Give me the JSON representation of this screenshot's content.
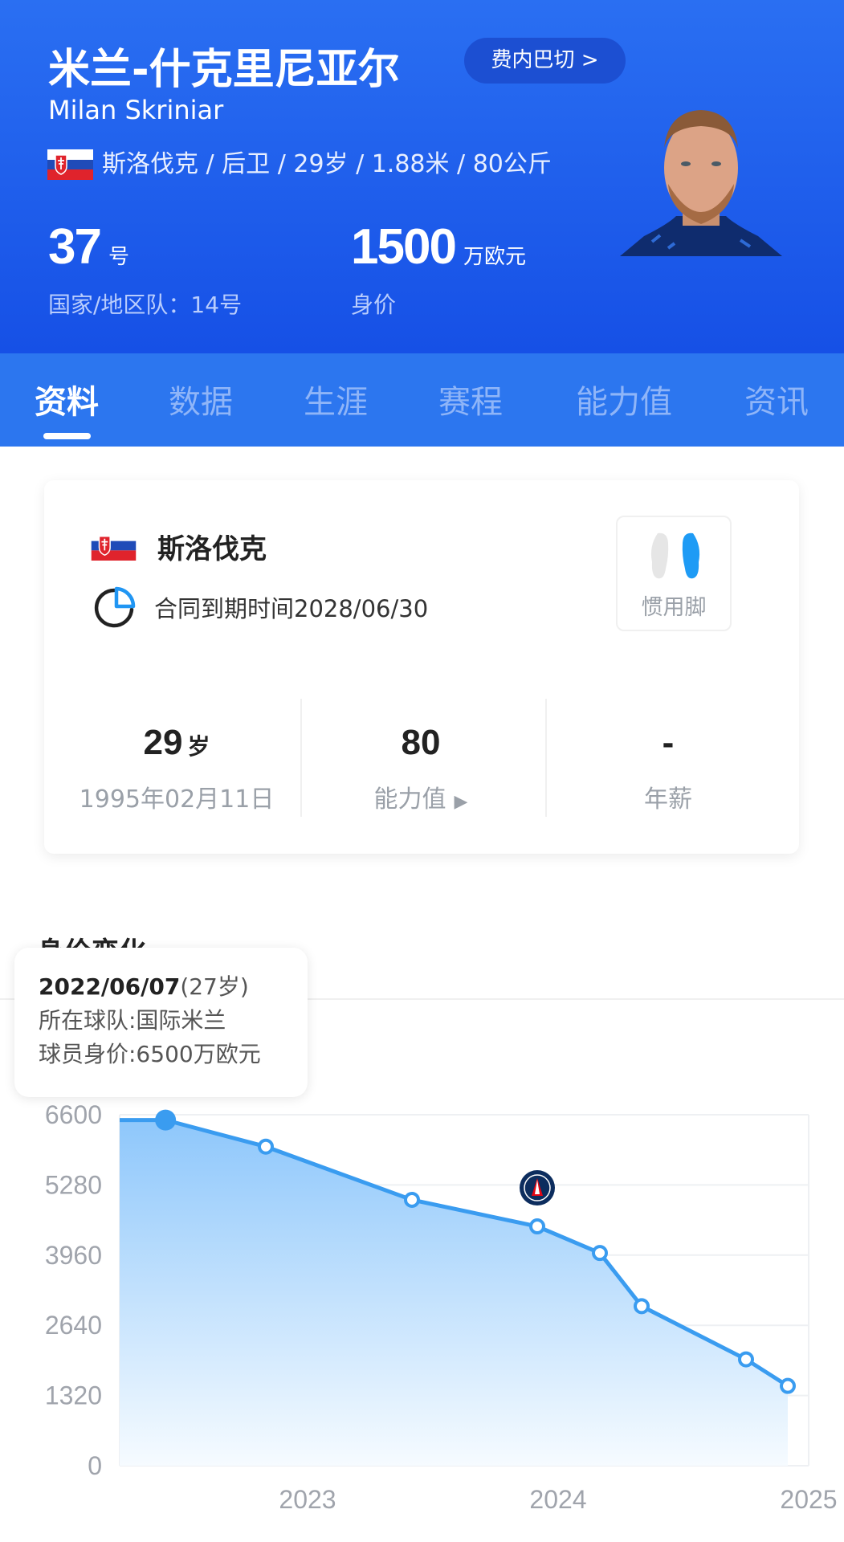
{
  "header": {
    "name_cn": "米兰-什克里尼亚尔",
    "team_badge": "费内巴切 >",
    "name_en": "Milan Skriniar",
    "info_line": "斯洛伐克 / 后卫 / 29岁 / 1.88米 / 80公斤",
    "shirt_number": "37",
    "shirt_unit": "号",
    "national_team": "国家/地区队：14号",
    "market_value": "1500",
    "market_value_unit": "万欧元",
    "market_value_label": "身价",
    "flag_icon": "slovakia-flag"
  },
  "tabs": [
    {
      "label": "资料",
      "active": true
    },
    {
      "label": "数据"
    },
    {
      "label": "生涯"
    },
    {
      "label": "赛程"
    },
    {
      "label": "能力值"
    },
    {
      "label": "资讯"
    }
  ],
  "card": {
    "country": "斯洛伐克",
    "contract": "合同到期时间2028/06/30",
    "preferred_foot_label": "惯用脚",
    "preferred_foot": "right",
    "stats": [
      {
        "value": "29",
        "unit": "岁",
        "label": "1995年02月11日"
      },
      {
        "value": "80",
        "unit": "",
        "label": "能力值"
      },
      {
        "value": "-",
        "unit": "",
        "label": "年薪"
      }
    ]
  },
  "section_title": "身价变化",
  "tooltip": {
    "date": "2022/06/07",
    "age": "(27岁)",
    "team": "所在球队:国际米兰",
    "value": "球员身价:6500万欧元"
  },
  "colors": {
    "header": "#1f5fea",
    "tabs": "#2c76ef",
    "line": "#3a9cf0",
    "accent": "#1e9bf5"
  },
  "chart_data": {
    "type": "area",
    "title": "身价变化",
    "ylabel": "",
    "xlabel": "",
    "ylim": [
      0,
      6600
    ],
    "yticks": [
      "0",
      "1320",
      "2640",
      "3960",
      "5280",
      "6600"
    ],
    "xlim": [
      "2022-04",
      "2025-01"
    ],
    "xticks": [
      "2023",
      "2024",
      "2025"
    ],
    "grid": true,
    "points": [
      {
        "x": "2022-06-07",
        "y": 6500,
        "selected": true
      },
      {
        "x": "2022-11",
        "y": 6000
      },
      {
        "x": "2023-06",
        "y": 5000
      },
      {
        "x": "2023-12",
        "y": 4500,
        "annotation": "psg-logo"
      },
      {
        "x": "2024-03",
        "y": 4000
      },
      {
        "x": "2024-05",
        "y": 3000
      },
      {
        "x": "2024-10",
        "y": 2000
      },
      {
        "x": "2024-12",
        "y": 1500
      }
    ],
    "unit": "万欧元"
  }
}
